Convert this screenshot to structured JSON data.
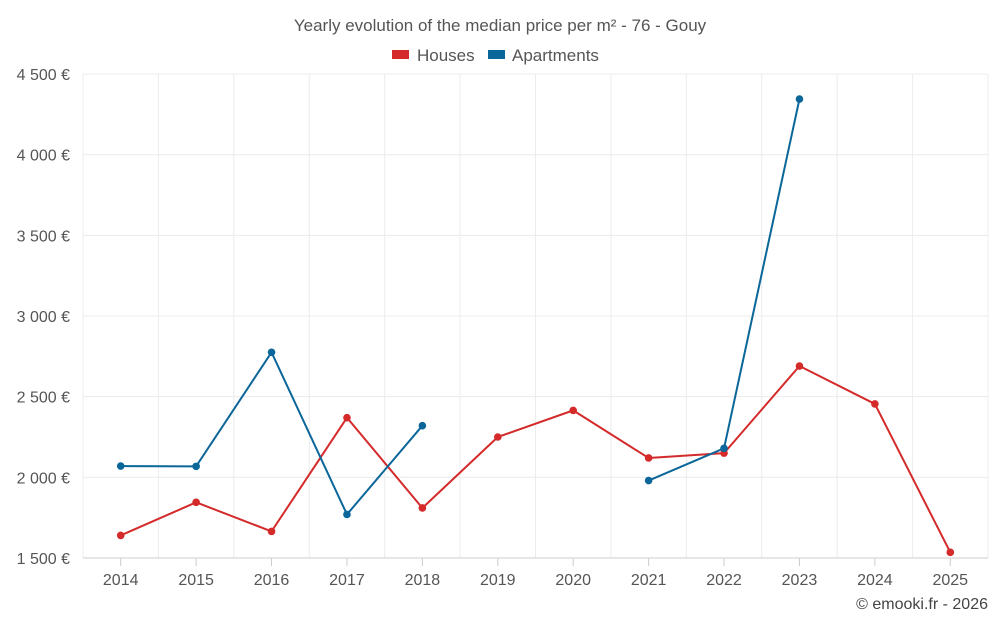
{
  "chart_data": {
    "type": "line",
    "title": "Yearly evolution of the median price per m² - 76 - Gouy",
    "categories": [
      "2014",
      "2015",
      "2016",
      "2017",
      "2018",
      "2019",
      "2020",
      "2021",
      "2022",
      "2023",
      "2024",
      "2025"
    ],
    "ylim": [
      1500,
      4500
    ],
    "yticks": [
      1500,
      2000,
      2500,
      3000,
      3500,
      4000,
      4500
    ],
    "ytick_labels": [
      "1 500 €",
      "2 000 €",
      "2 500 €",
      "3 000 €",
      "3 500 €",
      "4 000 €",
      "4 500 €"
    ],
    "grid": true,
    "legend_position": "top-center",
    "series": [
      {
        "name": "Houses",
        "color": "#d42a2a",
        "values": [
          1640,
          1845,
          1665,
          2370,
          1810,
          2250,
          2415,
          2120,
          2150,
          2690,
          2455,
          1535
        ]
      },
      {
        "name": "Apartments",
        "color": "#0b6699",
        "values": [
          2070,
          2068,
          2775,
          1770,
          2320,
          null,
          null,
          1980,
          2180,
          4345,
          null,
          null
        ]
      }
    ],
    "credit": "© emooki.fr - 2026"
  }
}
